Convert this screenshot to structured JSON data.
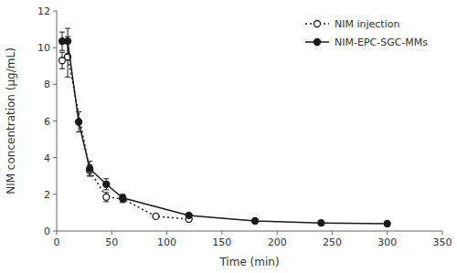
{
  "chart_data": {
    "type": "line",
    "xlabel": "Time (min)",
    "ylabel": "NIM concentration (μg/mL)",
    "xlim": [
      0,
      350
    ],
    "ylim": [
      0,
      12
    ],
    "xticks": [
      0,
      50,
      100,
      150,
      200,
      250,
      300,
      350
    ],
    "yticks": [
      0,
      2,
      4,
      6,
      8,
      10,
      12
    ],
    "grid": false,
    "legend": "upper right",
    "series": [
      {
        "name": "NIM injection",
        "color": "#1a1a1a",
        "marker": "open-circle",
        "line_style": "dotted",
        "x": [
          5,
          10,
          30,
          45,
          60,
          90,
          120
        ],
        "values": [
          9.3,
          9.5,
          3.3,
          1.85,
          1.75,
          0.8,
          0.65
        ],
        "errors": [
          0.45,
          1.1,
          0.3,
          0.25,
          0.2,
          0.08,
          0.08
        ]
      },
      {
        "name": "NIM-EPC-SGC-MMs",
        "color": "#1a1a1a",
        "marker": "circle",
        "line_style": "solid",
        "x": [
          5,
          10,
          20,
          30,
          45,
          60,
          120,
          180,
          240,
          300
        ],
        "values": [
          10.35,
          10.35,
          5.95,
          3.4,
          2.55,
          1.8,
          0.85,
          0.55,
          0.44,
          0.4
        ],
        "errors": [
          0.5,
          0.7,
          0.55,
          0.4,
          0.3,
          0.2,
          0.1,
          0.07,
          0.06,
          0.05
        ]
      }
    ]
  }
}
